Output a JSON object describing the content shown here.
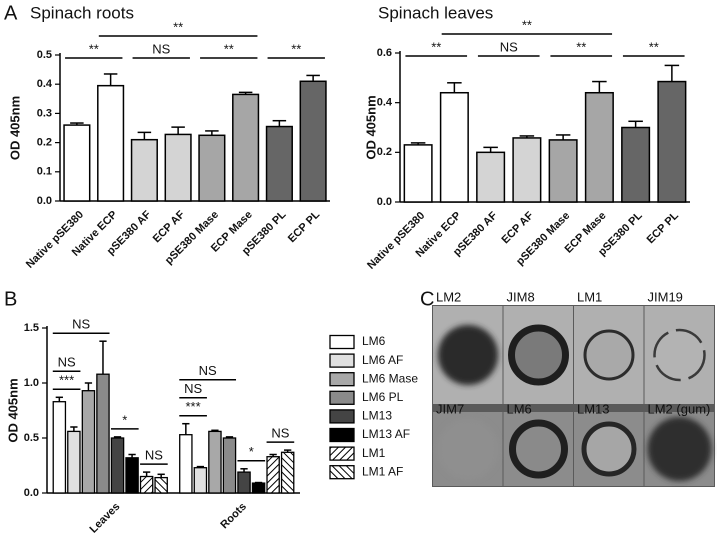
{
  "panel_labels": [
    "A",
    "B",
    "C"
  ],
  "chart_data": [
    {
      "type": "bar",
      "title": "Spinach roots",
      "y_label": "OD 405nm",
      "categories": [
        "Native pSE380",
        "Native ECP",
        "pSE380 AF",
        "ECP AF",
        "pSE380 Mase",
        "ECP Mase",
        "pSE380 PL",
        "ECP PL"
      ],
      "values": [
        0.26,
        0.395,
        0.21,
        0.228,
        0.225,
        0.365,
        0.255,
        0.41
      ],
      "errors": [
        0.007,
        0.04,
        0.025,
        0.025,
        0.015,
        0.007,
        0.02,
        0.02
      ],
      "colors": [
        "#ffffff",
        "#ffffff",
        "#d4d4d4",
        "#d4d4d4",
        "#a6a6a6",
        "#a6a6a6",
        "#666666",
        "#666666"
      ],
      "ylim": [
        0,
        0.5
      ],
      "yticks": [
        {
          "value": 0,
          "label": "0.0"
        },
        0.1,
        0.2,
        0.3,
        0.4,
        0.5
      ],
      "annotations": [
        {
          "text": "**",
          "from": 0,
          "to": 1,
          "level": 1
        },
        {
          "text": "NS",
          "from": 2,
          "to": 3,
          "level": 1
        },
        {
          "text": "**",
          "from": 4,
          "to": 5,
          "level": 1
        },
        {
          "text": "**",
          "from": 6,
          "to": 7,
          "level": 1
        },
        {
          "text": "**",
          "from": 1,
          "to": 5,
          "level": 2
        }
      ]
    },
    {
      "type": "bar",
      "title": "Spinach leaves",
      "y_label": "OD 405nm",
      "categories": [
        "Native pSE380",
        "Native ECP",
        "pSE380 AF",
        "ECP AF",
        "pSE380 Mase",
        "ECP Mase",
        "pSE380 PL",
        "ECP PL"
      ],
      "values": [
        0.23,
        0.44,
        0.2,
        0.258,
        0.25,
        0.44,
        0.3,
        0.485
      ],
      "errors": [
        0.008,
        0.04,
        0.02,
        0.008,
        0.02,
        0.045,
        0.025,
        0.065
      ],
      "colors": [
        "#ffffff",
        "#ffffff",
        "#d4d4d4",
        "#d4d4d4",
        "#a6a6a6",
        "#a6a6a6",
        "#666666",
        "#666666"
      ],
      "ylim": [
        0,
        0.6
      ],
      "yticks": [
        {
          "value": 0,
          "label": "0.0"
        },
        0.2,
        0.4,
        0.6
      ],
      "annotations": [
        {
          "text": "**",
          "from": 0,
          "to": 1,
          "level": 1
        },
        {
          "text": "NS",
          "from": 2,
          "to": 3,
          "level": 1
        },
        {
          "text": "**",
          "from": 4,
          "to": 5,
          "level": 1
        },
        {
          "text": "**",
          "from": 6,
          "to": 7,
          "level": 1
        },
        {
          "text": "**",
          "from": 1,
          "to": 5,
          "level": 2
        }
      ]
    },
    {
      "type": "grouped_bar",
      "y_label": "OD 405nm",
      "categories": [
        "Leaves",
        "Roots"
      ],
      "series": [
        {
          "name": "LM6",
          "color": "#ffffff",
          "values": [
            0.83,
            0.53
          ],
          "errors": [
            0.04,
            0.1
          ]
        },
        {
          "name": "LM6 AF",
          "color": "#e0e0e0",
          "values": [
            0.56,
            0.23
          ],
          "errors": [
            0.04,
            0.01
          ]
        },
        {
          "name": "LM6 Mase",
          "color": "#a8a8a8",
          "values": [
            0.93,
            0.56
          ],
          "errors": [
            0.07,
            0.01
          ]
        },
        {
          "name": "LM6 PL",
          "color": "#8a8a8a",
          "values": [
            1.08,
            0.5
          ],
          "errors": [
            0.3,
            0.01
          ]
        },
        {
          "name": "LM13",
          "color": "#444444",
          "values": [
            0.5,
            0.19
          ],
          "errors": [
            0.01,
            0.03
          ]
        },
        {
          "name": "LM13 AF",
          "color": "#000000",
          "values": [
            0.32,
            0.09
          ],
          "errors": [
            0.03,
            0.005
          ]
        },
        {
          "name": "LM1",
          "color": "#ffffff",
          "hatch": "\\",
          "values": [
            0.15,
            0.33
          ],
          "errors": [
            0.04,
            0.02
          ]
        },
        {
          "name": "LM1 AF",
          "color": "#ffffff",
          "hatch": "/",
          "values": [
            0.14,
            0.37
          ],
          "errors": [
            0.03,
            0.02
          ]
        }
      ],
      "ylim": [
        0,
        1.5
      ],
      "yticks": [
        {
          "value": 0,
          "label": "0.0"
        },
        0.5,
        {
          "value": 1,
          "label": "1.0"
        },
        1.5
      ],
      "annotations": [
        {
          "text": "NS",
          "group": 0,
          "from": 0,
          "to": 3,
          "level": 1
        },
        {
          "text": "NS",
          "group": 0,
          "from": 0,
          "to": 1,
          "level": 2
        },
        {
          "text": "***",
          "group": 0,
          "from": 0,
          "to": 1,
          "level": 1
        },
        {
          "text": "*",
          "group": 0,
          "from": 4,
          "to": 5,
          "level": 1
        },
        {
          "text": "NS",
          "group": 0,
          "from": 6,
          "to": 7,
          "level": 1
        },
        {
          "text": "NS",
          "group": 1,
          "from": 0,
          "to": 3,
          "level": 3
        },
        {
          "text": "NS",
          "group": 1,
          "from": 0,
          "to": 1,
          "level": 2
        },
        {
          "text": "***",
          "group": 1,
          "from": 0,
          "to": 1,
          "level": 1
        },
        {
          "text": "*",
          "group": 1,
          "from": 4,
          "to": 5,
          "level": 1
        },
        {
          "text": "NS",
          "group": 1,
          "from": 6,
          "to": 7,
          "level": 1
        }
      ]
    }
  ],
  "dot_blot": {
    "labels": [
      "LM2",
      "JIM8",
      "LM1",
      "JIM19",
      "JIM7",
      "LM6",
      "LM13",
      "LM2 (gum)"
    ]
  }
}
